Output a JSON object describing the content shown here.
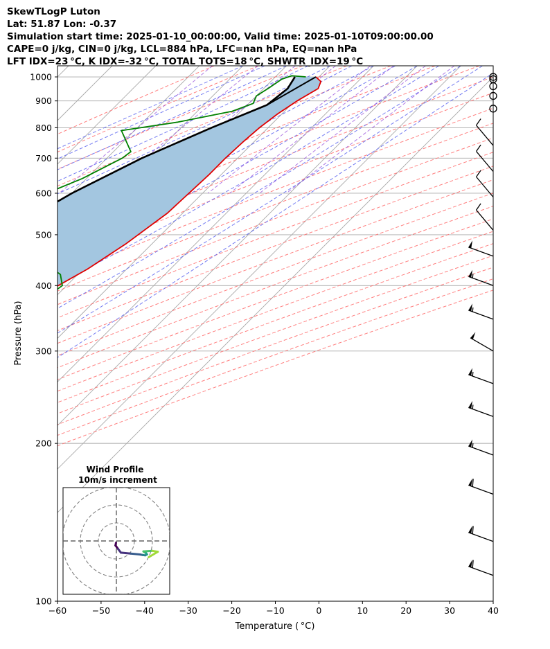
{
  "header": {
    "line1": "SkewTLogP Luton",
    "line2": "Lat: 51.87   Lon: -0.37",
    "line3": "Simulation start time: 2025-01-10_00:00:00, Valid time: 2025-01-10T09:00:00.00",
    "line4": "CAPE=0 j/kg, CIN=0 j/kg, LCL=884 hPa, LFC=nan hPa, EQ=nan hPa",
    "line5": "LFT IDX=23 °C, K IDX=-32 °C, TOTAL TOTS=18 °C, SHWTR_IDX=19 °C"
  },
  "chart_data": {
    "type": "line",
    "subtype": "skew-t log-p",
    "xlabel": "Temperature ( °C)",
    "ylabel": "Pressure (hPa)",
    "xlim": [
      -60,
      40
    ],
    "ylim": [
      1050,
      100
    ],
    "y_scale": "log",
    "grid": true,
    "x_ticks": [
      -60,
      -50,
      -40,
      -30,
      -20,
      -10,
      0,
      10,
      20,
      30,
      40
    ],
    "x_tick_labels": [
      "−60",
      "−50",
      "−40",
      "−30",
      "−20",
      "−10",
      "0",
      "10",
      "20",
      "30",
      "40"
    ],
    "y_ticks": [
      1000,
      900,
      800,
      700,
      600,
      500,
      400,
      300,
      200,
      100
    ],
    "y_tick_labels": [
      "1000",
      "900",
      "800",
      "700",
      "600",
      "500",
      "400",
      "300",
      "200",
      "100"
    ],
    "colors": {
      "temperature": "#e00000",
      "dewpoint": "#008000",
      "parcel": "#000000",
      "fill": "#a3c6e0",
      "dry_adiabat": "#ff6a6a",
      "moist_adiabat": "#5b64f0",
      "mixing_ratio": "#8e40d8",
      "isotherm": "#a9a9a9"
    },
    "series": [
      {
        "key": "temperature",
        "x": [
          -0.7,
          1.5,
          2.5,
          0.5,
          -1,
          -2,
          -2.5,
          -2.8,
          -2.8,
          -3.5,
          -6,
          -9,
          -14,
          -19,
          -22,
          -24,
          -28,
          -33,
          -37,
          -41,
          -45,
          -48,
          -51,
          -52,
          -54,
          -56
        ],
        "y": [
          1000,
          980,
          950,
          900,
          850,
          800,
          750,
          700,
          650,
          550,
          480,
          430,
          380,
          330,
          300,
          270,
          240,
          215,
          200,
          185,
          170,
          150,
          140,
          120,
          110,
          100
        ]
      },
      {
        "key": "dewpoint",
        "x": [
          -3,
          -6.5,
          -8,
          -9,
          -10,
          -9,
          -12,
          -22,
          -33,
          -26,
          -26.5,
          -31,
          -41,
          -67.5,
          -20,
          -14,
          -11,
          -12,
          -18,
          -21,
          -24,
          -25,
          -29,
          -30,
          -34,
          -36,
          -37,
          -36,
          -30,
          -25,
          -22
        ],
        "y": [
          1000,
          1005,
          990,
          950,
          920,
          890,
          860,
          820,
          790,
          720,
          700,
          640,
          560,
          480,
          440,
          420,
          400,
          380,
          340,
          320,
          300,
          280,
          240,
          210,
          180,
          170,
          160,
          150,
          130,
          110,
          100
        ]
      },
      {
        "key": "parcel",
        "x": [
          -5.5,
          -4.5,
          -5.5,
          -13,
          -22,
          -30,
          -37,
          -46,
          -55,
          -63,
          -75,
          -90,
          -103
        ],
        "y": [
          1000,
          950,
          884,
          800,
          700,
          600,
          500,
          400,
          300,
          250,
          200,
          150,
          100
        ]
      },
      {
        "key": "parcel_dry_lift",
        "x": [
          -0.7,
          -5.5
        ],
        "y": [
          1000,
          884
        ]
      }
    ],
    "wind_barbs": {
      "pressures": [
        1000,
        990,
        960,
        920,
        870,
        740,
        660,
        590,
        510,
        455,
        400,
        345,
        300,
        260,
        225,
        190,
        160,
        130,
        112
      ],
      "speeds_kt": [
        0,
        0,
        0,
        0,
        0,
        10,
        10,
        10,
        10,
        50,
        55,
        55,
        50,
        55,
        55,
        55,
        60,
        60,
        60
      ],
      "directions_deg": [
        0,
        0,
        0,
        0,
        0,
        320,
        320,
        320,
        320,
        290,
        290,
        290,
        300,
        290,
        290,
        290,
        290,
        290,
        290
      ]
    },
    "hodograph": {
      "title": "Wind Profile",
      "subtitle": "10m/s increment",
      "x_ms": [
        -0.2,
        -0.5,
        1,
        2.5,
        8,
        13,
        14.5,
        16,
        17,
        16.5,
        15.5,
        15,
        20,
        23,
        18
      ],
      "y_ms": [
        -1,
        -2.5,
        -4.5,
        -6.5,
        -7,
        -7.5,
        -7.8,
        -8,
        -7.5,
        -6.8,
        -6.2,
        -5.8,
        -5.5,
        -6,
        -9
      ],
      "ring_count": 3
    }
  }
}
